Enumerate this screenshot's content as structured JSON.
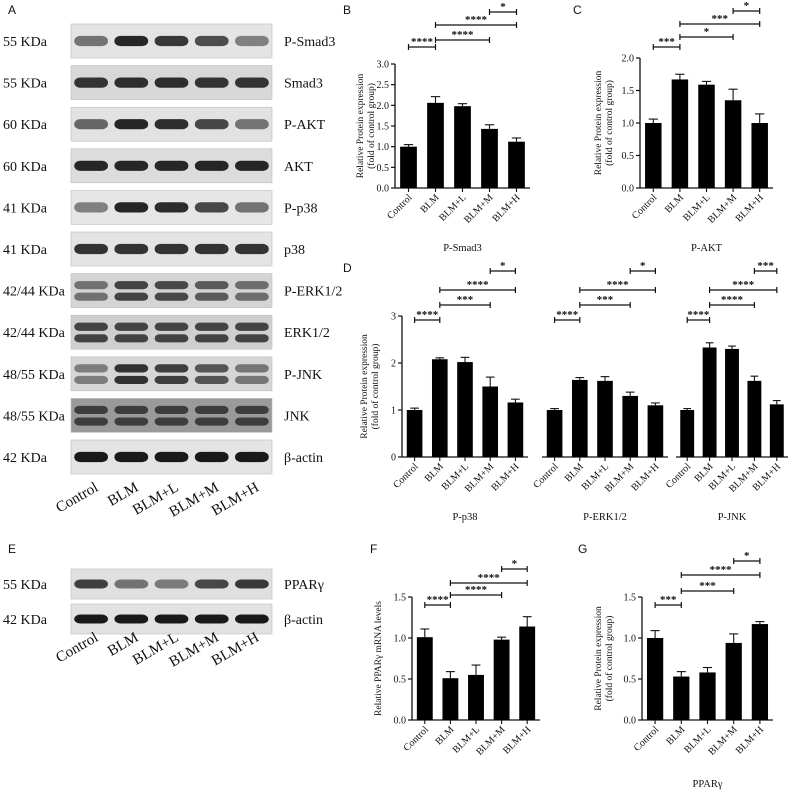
{
  "panel_letters": [
    "A",
    "B",
    "C",
    "D",
    "E",
    "F",
    "G"
  ],
  "blot_a": {
    "rows": [
      {
        "mw": "55 KDa",
        "name": "P-Smad3",
        "bands": 1,
        "bg": "#e4e4e4",
        "darkness": [
          0.55,
          0.85,
          0.78,
          0.7,
          0.5
        ]
      },
      {
        "mw": "55 KDa",
        "name": "Smad3",
        "bands": 1,
        "bg": "#d8d8d8",
        "darkness": [
          0.8,
          0.82,
          0.82,
          0.8,
          0.8
        ]
      },
      {
        "mw": "60 KDa",
        "name": "P-AKT",
        "bands": 1,
        "bg": "#e2e2e2",
        "darkness": [
          0.6,
          0.85,
          0.82,
          0.72,
          0.55
        ]
      },
      {
        "mw": "60 KDa",
        "name": "AKT",
        "bands": 1,
        "bg": "#dcdcdc",
        "darkness": [
          0.85,
          0.85,
          0.85,
          0.85,
          0.85
        ]
      },
      {
        "mw": "41 KDa",
        "name": "P-p38",
        "bands": 1,
        "bg": "#e6e6e6",
        "darkness": [
          0.5,
          0.85,
          0.83,
          0.72,
          0.55
        ]
      },
      {
        "mw": "41 KDa",
        "name": "p38",
        "bands": 1,
        "bg": "#e4e4e4",
        "darkness": [
          0.8,
          0.8,
          0.8,
          0.8,
          0.8
        ]
      },
      {
        "mw": "42/44 KDa",
        "name": "P-ERK1/2",
        "bands": 2,
        "bg": "#d4d4d4",
        "darkness": [
          0.6,
          0.8,
          0.78,
          0.7,
          0.62
        ]
      },
      {
        "mw": "42/44 KDa",
        "name": "ERK1/2",
        "bands": 2,
        "bg": "#cfcfcf",
        "darkness": [
          0.8,
          0.8,
          0.8,
          0.8,
          0.8
        ]
      },
      {
        "mw": "48/55 KDa",
        "name": "P-JNK",
        "bands": 2,
        "bg": "#d6d6d6",
        "darkness": [
          0.55,
          0.88,
          0.82,
          0.72,
          0.58
        ]
      },
      {
        "mw": "48/55 KDa",
        "name": "JNK",
        "bands": 2,
        "bg": "#9a9a9a",
        "darkness": [
          0.8,
          0.8,
          0.8,
          0.8,
          0.8
        ]
      },
      {
        "mw": "42 KDa",
        "name": "β-actin",
        "bands": 1,
        "bg": "#e4e4e4",
        "darkness": [
          0.9,
          0.9,
          0.9,
          0.9,
          0.9
        ]
      }
    ],
    "lanes": [
      "Control",
      "BLM",
      "BLM+L",
      "BLM+M",
      "BLM+H"
    ]
  },
  "blot_e": {
    "rows": [
      {
        "mw": "55 KDa",
        "name": "PPARγ",
        "bands": 1,
        "bg": "#e0e0e0",
        "darkness": [
          0.75,
          0.55,
          0.52,
          0.72,
          0.78
        ]
      },
      {
        "mw": "42 KDa",
        "name": "β-actin",
        "bands": 1,
        "bg": "#e2e2e2",
        "darkness": [
          0.9,
          0.9,
          0.9,
          0.9,
          0.9
        ]
      }
    ],
    "lanes": [
      "Control",
      "BLM",
      "BLM+L",
      "BLM+M",
      "BLM+H"
    ]
  },
  "chart_data": [
    {
      "panel": "B",
      "type": "bar",
      "categories": [
        "Control",
        "BLM",
        "BLM+L",
        "BLM+M",
        "BLM+H"
      ],
      "series": [
        {
          "values": [
            1.0,
            2.06,
            1.98,
            1.43,
            1.12
          ],
          "errors": [
            0.05,
            0.15,
            0.06,
            0.1,
            0.09
          ]
        }
      ],
      "xlabel": "P-Smad3",
      "ylabel": [
        "Relative Protein expression",
        "(fold of control group)"
      ],
      "ylim": [
        0,
        3
      ],
      "yticks": [
        "0.0",
        "0.5",
        "1.0",
        "1.5",
        "2.0",
        "2.5",
        "3.0"
      ],
      "brackets": [
        {
          "from": 0,
          "to": 1,
          "label": "****"
        },
        {
          "from": 1,
          "to": 3,
          "label": "****"
        },
        {
          "from": 1,
          "to": 4,
          "label": "****"
        },
        {
          "from": 3,
          "to": 4,
          "label": "*"
        }
      ]
    },
    {
      "panel": "C",
      "type": "bar",
      "categories": [
        "Control",
        "BLM",
        "BLM+L",
        "BLM+M",
        "BLM+H"
      ],
      "series": [
        {
          "values": [
            1.0,
            1.67,
            1.59,
            1.35,
            1.0
          ],
          "errors": [
            0.06,
            0.08,
            0.05,
            0.17,
            0.14
          ]
        }
      ],
      "xlabel": "P-AKT",
      "ylabel": [
        "Relative Protein expression",
        "(fold of control group)"
      ],
      "ylim": [
        0,
        2
      ],
      "yticks": [
        "0.0",
        "0.5",
        "1.0",
        "1.5",
        "2.0"
      ],
      "brackets": [
        {
          "from": 0,
          "to": 1,
          "label": "***"
        },
        {
          "from": 1,
          "to": 3,
          "label": "*"
        },
        {
          "from": 1,
          "to": 4,
          "label": "***"
        },
        {
          "from": 3,
          "to": 4,
          "label": "*"
        }
      ]
    },
    {
      "panel": "D",
      "type": "bar",
      "categories": [
        "Control",
        "BLM",
        "BLM+L",
        "BLM+M",
        "BLM+H"
      ],
      "groups": [
        {
          "name": "P-p38",
          "values": [
            1.0,
            2.08,
            2.02,
            1.5,
            1.16
          ],
          "errors": [
            0.04,
            0.03,
            0.1,
            0.2,
            0.07
          ]
        },
        {
          "name": "P-ERK1/2",
          "values": [
            1.0,
            1.64,
            1.62,
            1.3,
            1.1
          ],
          "errors": [
            0.03,
            0.05,
            0.09,
            0.08,
            0.05
          ]
        },
        {
          "name": "P-JNK",
          "values": [
            1.0,
            2.33,
            2.3,
            1.62,
            1.12
          ],
          "errors": [
            0.03,
            0.1,
            0.06,
            0.1,
            0.08
          ]
        }
      ],
      "ylabel": [
        "Relative Protein expression",
        "(fold of control group)"
      ],
      "ylim": [
        0,
        3
      ],
      "yticks": [
        "0",
        "1",
        "2",
        "3"
      ],
      "brackets": [
        {
          "from": 0,
          "to": 1,
          "label": "****"
        },
        {
          "from": 1,
          "to": 3,
          "label": "***"
        },
        {
          "from": 1,
          "to": 4,
          "label": "****"
        },
        {
          "from": 3,
          "to": 4,
          "label": "*"
        }
      ],
      "brackets_jnk": [
        {
          "from": 0,
          "to": 1,
          "label": "****"
        },
        {
          "from": 1,
          "to": 3,
          "label": "****"
        },
        {
          "from": 1,
          "to": 4,
          "label": "****"
        },
        {
          "from": 3,
          "to": 4,
          "label": "***"
        }
      ]
    },
    {
      "panel": "F",
      "type": "bar",
      "categories": [
        "Control",
        "BLM",
        "BLM+L",
        "BLM+M",
        "BLM+H"
      ],
      "series": [
        {
          "values": [
            1.01,
            0.51,
            0.55,
            0.98,
            1.14
          ],
          "errors": [
            0.1,
            0.08,
            0.12,
            0.03,
            0.12
          ]
        }
      ],
      "xlabel": "",
      "ylabel": [
        "Relative PPARγ mRNA levels"
      ],
      "ylim": [
        0,
        1.5
      ],
      "yticks": [
        "0.0",
        "0.5",
        "1.0",
        "1.5"
      ],
      "brackets": [
        {
          "from": 0,
          "to": 1,
          "label": "****"
        },
        {
          "from": 1,
          "to": 3,
          "label": "****"
        },
        {
          "from": 1,
          "to": 4,
          "label": "****"
        },
        {
          "from": 3,
          "to": 4,
          "label": "*"
        }
      ]
    },
    {
      "panel": "G",
      "type": "bar",
      "categories": [
        "Control",
        "BLM",
        "BLM+L",
        "BLM+M",
        "BLM+H"
      ],
      "series": [
        {
          "values": [
            1.0,
            0.53,
            0.58,
            0.94,
            1.17
          ],
          "errors": [
            0.09,
            0.06,
            0.06,
            0.11,
            0.03
          ]
        }
      ],
      "xlabel": "PPARγ",
      "ylabel": [
        "Relative Protein expression",
        "(fold of control group)"
      ],
      "ylim": [
        0,
        1.5
      ],
      "yticks": [
        "0.0",
        "0.5",
        "1.0",
        "1.5"
      ],
      "brackets": [
        {
          "from": 0,
          "to": 1,
          "label": "***"
        },
        {
          "from": 1,
          "to": 3,
          "label": "***"
        },
        {
          "from": 1,
          "to": 4,
          "label": "****"
        },
        {
          "from": 3,
          "to": 4,
          "label": "*"
        }
      ]
    }
  ]
}
